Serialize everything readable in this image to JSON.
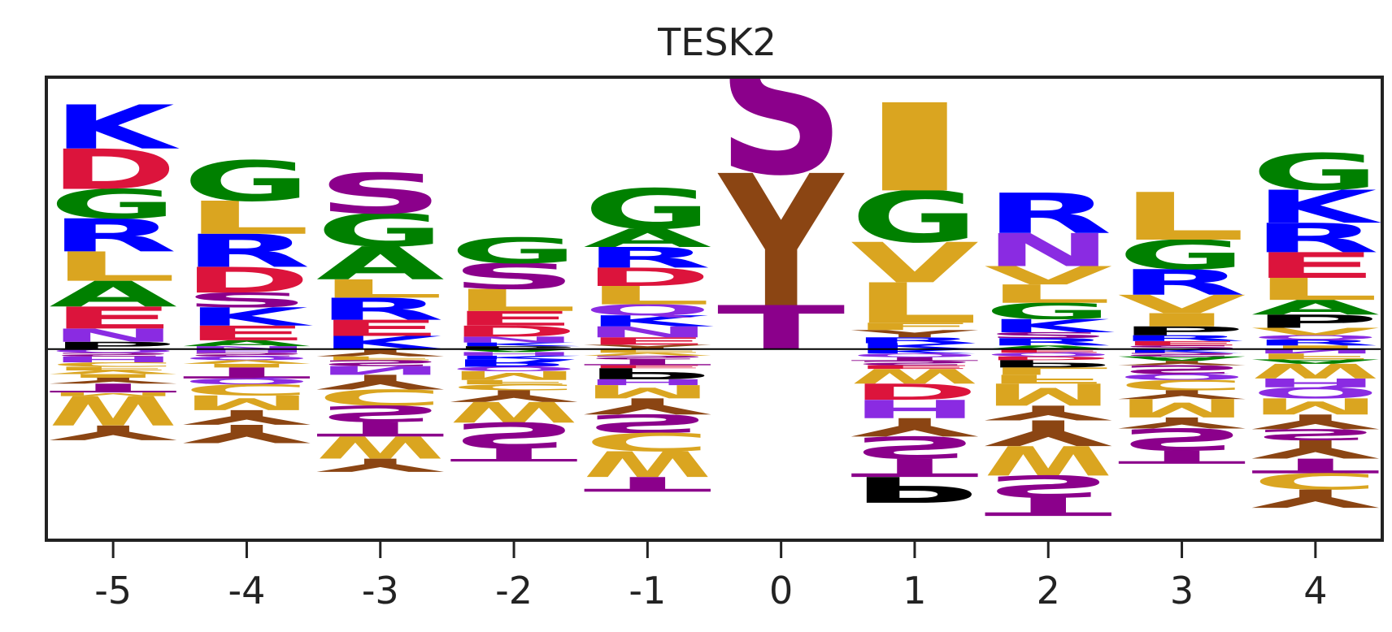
{
  "chart_data": {
    "type": "sequence-logo",
    "title": "TESK2",
    "xlabel": "",
    "ylabel": "",
    "positions": [
      -5,
      -4,
      -3,
      -2,
      -1,
      0,
      1,
      2,
      3,
      4
    ],
    "tick_labels": [
      "-5",
      "-4",
      "-3",
      "-2",
      "-1",
      "0",
      "1",
      "2",
      "3",
      "4"
    ],
    "ylim": [
      -2.6,
      3.7
    ],
    "colors": {
      "K": "#0000ff",
      "R": "#0000ff",
      "H": "#8a2be2",
      "N": "#8a2be2",
      "Q": "#8a2be2",
      "D": "#dc143c",
      "E": "#dc143c",
      "G": "#008000",
      "A": "#008000",
      "L": "#daa520",
      "I": "#daa520",
      "V": "#daa520",
      "M": "#daa520",
      "F": "#daa520",
      "W": "#daa520",
      "C": "#daa520",
      "S": "#8b008b",
      "T": "#8b008b",
      "Y": "#8b4513",
      "P": "#000000"
    },
    "columns": [
      {
        "position": "-5",
        "pos": [
          [
            "P",
            0.1
          ],
          [
            "N",
            0.18
          ],
          [
            "E",
            0.3
          ],
          [
            "A",
            0.35
          ],
          [
            "L",
            0.4
          ],
          [
            "R",
            0.45
          ],
          [
            "G",
            0.4
          ],
          [
            "D",
            0.55
          ],
          [
            "K",
            0.6
          ]
        ],
        "neg": [
          [
            "Q",
            0.05
          ],
          [
            "S",
            0.05
          ],
          [
            "H",
            0.08
          ],
          [
            "C",
            0.06
          ],
          [
            "F",
            0.05
          ],
          [
            "V",
            0.05
          ],
          [
            "I",
            0.05
          ],
          [
            "Y",
            0.08
          ],
          [
            "T",
            0.12
          ],
          [
            "M",
            0.05
          ],
          [
            "W",
            0.4
          ],
          [
            "Y",
            0.2
          ]
        ]
      },
      {
        "position": "-4",
        "pos": [
          [
            "N",
            0.04
          ],
          [
            "A",
            0.08
          ],
          [
            "E",
            0.2
          ],
          [
            "K",
            0.25
          ],
          [
            "S",
            0.2
          ],
          [
            "D",
            0.35
          ],
          [
            "R",
            0.45
          ],
          [
            "L",
            0.45
          ],
          [
            "G",
            0.55
          ]
        ],
        "neg": [
          [
            "H",
            0.05
          ],
          [
            "S",
            0.05
          ],
          [
            "Q",
            0.05
          ],
          [
            "V",
            0.05
          ],
          [
            "I",
            0.05
          ],
          [
            "T",
            0.15
          ],
          [
            "Q",
            0.08
          ],
          [
            "C",
            0.15
          ],
          [
            "M",
            0.2
          ],
          [
            "Y",
            0.2
          ],
          [
            "Y",
            0.25
          ]
        ]
      },
      {
        "position": "-3",
        "pos": [
          [
            "K",
            0.18
          ],
          [
            "E",
            0.22
          ],
          [
            "R",
            0.3
          ],
          [
            "L",
            0.25
          ],
          [
            "A",
            0.45
          ],
          [
            "G",
            0.45
          ],
          [
            "S",
            0.55
          ]
        ],
        "neg": [
          [
            "Y",
            0.1
          ],
          [
            "F",
            0.05
          ],
          [
            "S",
            0.08
          ],
          [
            "N",
            0.12
          ],
          [
            "Y",
            0.2
          ],
          [
            "C",
            0.22
          ],
          [
            "S",
            0.22
          ],
          [
            "T",
            0.2
          ],
          [
            "W",
            0.3
          ],
          [
            "Y",
            0.18
          ]
        ]
      },
      {
        "position": "-2",
        "pos": [
          [
            "P",
            0.04
          ],
          [
            "K",
            0.05
          ],
          [
            "N",
            0.08
          ],
          [
            "D",
            0.15
          ],
          [
            "E",
            0.2
          ],
          [
            "L",
            0.3
          ],
          [
            "S",
            0.35
          ],
          [
            "G",
            0.35
          ]
        ],
        "neg": [
          [
            "A",
            0.04
          ],
          [
            "H",
            0.05
          ],
          [
            "K",
            0.05
          ],
          [
            "R",
            0.1
          ],
          [
            "Q",
            0.06
          ],
          [
            "M",
            0.12
          ],
          [
            "F",
            0.06
          ],
          [
            "C",
            0.08
          ],
          [
            "Y",
            0.16
          ],
          [
            "W",
            0.28
          ],
          [
            "S",
            0.35
          ],
          [
            "T",
            0.18
          ]
        ]
      },
      {
        "position": "-1",
        "pos": [
          [
            "Y",
            0.06
          ],
          [
            "E",
            0.1
          ],
          [
            "N",
            0.15
          ],
          [
            "K",
            0.15
          ],
          [
            "Q",
            0.15
          ],
          [
            "L",
            0.25
          ],
          [
            "D",
            0.25
          ],
          [
            "R",
            0.28
          ],
          [
            "A",
            0.25
          ],
          [
            "G",
            0.55
          ]
        ],
        "neg": [
          [
            "F",
            0.05
          ],
          [
            "V",
            0.04
          ],
          [
            "S",
            0.05
          ],
          [
            "T",
            0.08
          ],
          [
            "E",
            0.04
          ],
          [
            "P",
            0.15
          ],
          [
            "H",
            0.08
          ],
          [
            "M",
            0.18
          ],
          [
            "Y",
            0.22
          ],
          [
            "S",
            0.25
          ],
          [
            "C",
            0.25
          ],
          [
            "W",
            0.35
          ],
          [
            "T",
            0.2
          ]
        ]
      },
      {
        "position": "0",
        "pos": [
          [
            "T",
            0.6
          ],
          [
            "Y",
            1.8
          ],
          [
            "S",
            1.8
          ]
        ],
        "neg": []
      },
      {
        "position": "1",
        "pos": [
          [
            "K",
            0.08
          ],
          [
            "R",
            0.08
          ],
          [
            "Y",
            0.1
          ],
          [
            "F",
            0.1
          ],
          [
            "L",
            0.55
          ],
          [
            "V",
            0.55
          ],
          [
            "G",
            0.7
          ],
          [
            "I",
            1.2
          ]
        ],
        "neg": [
          [
            "K",
            0.06
          ],
          [
            "Q",
            0.05
          ],
          [
            "T",
            0.05
          ],
          [
            "S",
            0.06
          ],
          [
            "E",
            0.05
          ],
          [
            "W",
            0.2
          ],
          [
            "D",
            0.22
          ],
          [
            "H",
            0.25
          ],
          [
            "Y",
            0.25
          ],
          [
            "S",
            0.3
          ],
          [
            "T",
            0.25
          ],
          [
            "P",
            0.35
          ]
        ]
      },
      {
        "position": "2",
        "pos": [
          [
            "A",
            0.05
          ],
          [
            "R",
            0.1
          ],
          [
            "S",
            0.08
          ],
          [
            "K",
            0.18
          ],
          [
            "G",
            0.22
          ],
          [
            "L",
            0.25
          ],
          [
            "V",
            0.25
          ],
          [
            "N",
            0.45
          ],
          [
            "R",
            0.55
          ]
        ],
        "neg": [
          [
            "E",
            0.05
          ],
          [
            "Q",
            0.05
          ],
          [
            "D",
            0.05
          ],
          [
            "P",
            0.1
          ],
          [
            "L",
            0.1
          ],
          [
            "F",
            0.12
          ],
          [
            "M",
            0.3
          ],
          [
            "Y",
            0.2
          ],
          [
            "Y",
            0.35
          ],
          [
            "W",
            0.4
          ],
          [
            "S",
            0.3
          ],
          [
            "T",
            0.25
          ]
        ]
      },
      {
        "position": "3",
        "pos": [
          [
            "S",
            0.05
          ],
          [
            "E",
            0.06
          ],
          [
            "R",
            0.08
          ],
          [
            "P",
            0.12
          ],
          [
            "I",
            0.18
          ],
          [
            "V",
            0.25
          ],
          [
            "R",
            0.35
          ],
          [
            "G",
            0.4
          ],
          [
            "L",
            0.65
          ]
        ],
        "neg": [
          [
            "K",
            0.05
          ],
          [
            "S",
            0.05
          ],
          [
            "A",
            0.06
          ],
          [
            "Y",
            0.06
          ],
          [
            "S",
            0.12
          ],
          [
            "Q",
            0.08
          ],
          [
            "C",
            0.14
          ],
          [
            "Y",
            0.12
          ],
          [
            "M",
            0.25
          ],
          [
            "Y",
            0.15
          ],
          [
            "S",
            0.3
          ],
          [
            "T",
            0.18
          ]
        ]
      },
      {
        "position": "4",
        "pos": [
          [
            "I",
            0.05
          ],
          [
            "R",
            0.08
          ],
          [
            "Q",
            0.06
          ],
          [
            "V",
            0.1
          ],
          [
            "P",
            0.18
          ],
          [
            "A",
            0.2
          ],
          [
            "L",
            0.3
          ],
          [
            "E",
            0.35
          ],
          [
            "R",
            0.4
          ],
          [
            "K",
            0.45
          ],
          [
            "G",
            0.5
          ]
        ],
        "neg": [
          [
            "N",
            0.06
          ],
          [
            "F",
            0.08
          ],
          [
            "A",
            0.06
          ],
          [
            "W",
            0.2
          ],
          [
            "H",
            0.12
          ],
          [
            "Q",
            0.15
          ],
          [
            "M",
            0.22
          ],
          [
            "Y",
            0.2
          ],
          [
            "S",
            0.15
          ],
          [
            "Y",
            0.25
          ],
          [
            "T",
            0.2
          ],
          [
            "C",
            0.22
          ],
          [
            "Y",
            0.25
          ]
        ]
      }
    ]
  }
}
